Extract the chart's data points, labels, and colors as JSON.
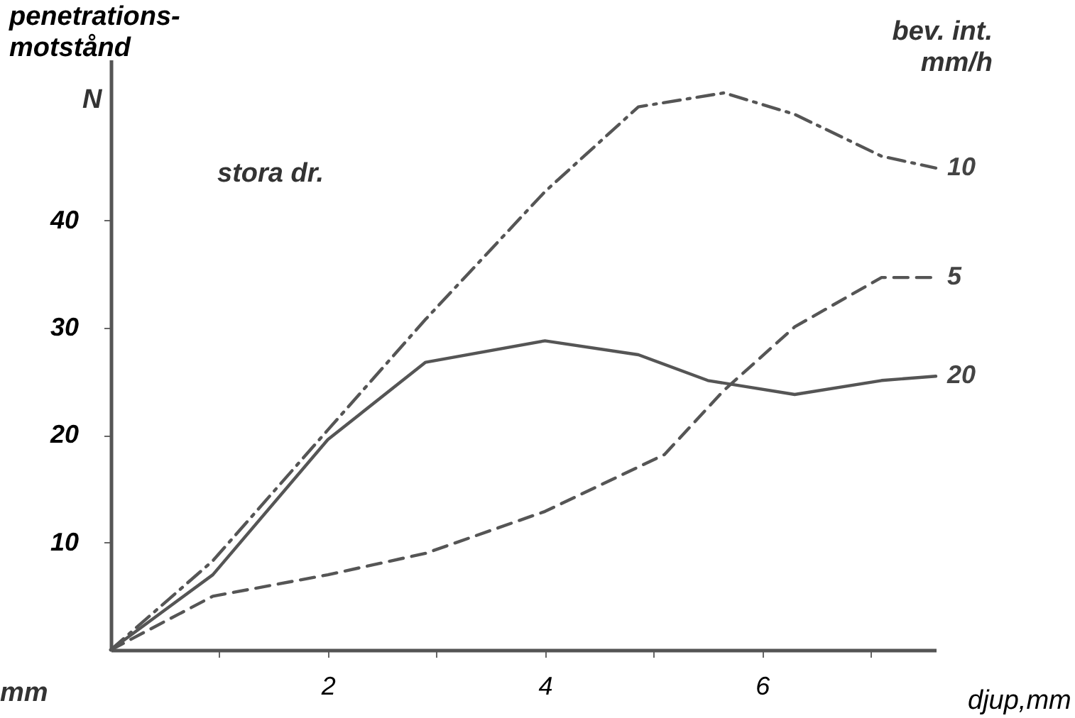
{
  "chart_data": {
    "type": "line",
    "xlabel": "djup,mm",
    "ylabel": "penetrations- motstånd",
    "legend_title": "bev. int. mm/h",
    "annotations": [
      "N",
      "stora dr.",
      "mm"
    ],
    "xlim": [
      0,
      7.6
    ],
    "ylim": [
      0,
      55
    ],
    "xticks": [
      {
        "value": 1,
        "label": null
      },
      2,
      {
        "value": 3,
        "label": null
      },
      4,
      {
        "value": 5,
        "label": null
      },
      6,
      {
        "value": 7,
        "label": null
      }
    ],
    "yticks": [
      10,
      20,
      30,
      40
    ],
    "series": [
      {
        "name": "10",
        "color": "#555555",
        "line_style": "dashdot",
        "x": [
          0,
          0.94,
          2.0,
          2.9,
          4.0,
          4.86,
          5.65,
          6.3,
          7.1,
          7.6
        ],
        "values": [
          0,
          8.3,
          20.5,
          30.8,
          42.7,
          50.6,
          51.9,
          49.9,
          46,
          44.9
        ]
      },
      {
        "name": "5",
        "color": "#555555",
        "line_style": "dashed",
        "x": [
          0,
          0.94,
          2.0,
          2.9,
          4.0,
          5.1,
          5.65,
          6.3,
          7.1,
          7.6
        ],
        "values": [
          0,
          5.0,
          7.0,
          9.0,
          12.9,
          18.2,
          24.2,
          30.1,
          34.7,
          34.7
        ]
      },
      {
        "name": "20",
        "color": "#555555",
        "line_style": "solid",
        "x": [
          0,
          0.94,
          2.0,
          2.9,
          4.0,
          4.86,
          5.5,
          6.3,
          7.1,
          7.6
        ],
        "values": [
          0,
          7.0,
          19.6,
          26.8,
          28.8,
          27.5,
          25.1,
          23.8,
          25.1,
          25.5
        ]
      }
    ]
  }
}
